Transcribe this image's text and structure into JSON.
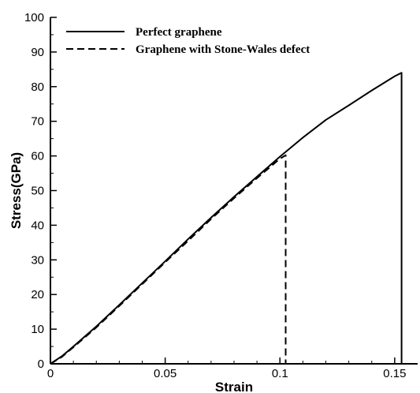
{
  "chart_data": {
    "type": "line",
    "xlabel": "Strain",
    "ylabel": "Stress(GPa)",
    "xlim": [
      0,
      0.16
    ],
    "ylim": [
      0,
      100
    ],
    "x_ticks": [
      0,
      0.05,
      0.1,
      0.15
    ],
    "x_tick_labels": [
      "0",
      "0.05",
      "0.1",
      "0.15"
    ],
    "y_ticks": [
      0,
      10,
      20,
      30,
      40,
      50,
      60,
      70,
      80,
      90,
      100
    ],
    "y_tick_labels": [
      "0",
      "10",
      "20",
      "30",
      "40",
      "50",
      "60",
      "70",
      "80",
      "90",
      "100"
    ],
    "grid": false,
    "legend_position": "top-left",
    "series": [
      {
        "name": "Perfect graphene",
        "style": "solid",
        "color": "#000000",
        "points": [
          [
            0,
            0
          ],
          [
            0.005,
            2.2
          ],
          [
            0.01,
            5.0
          ],
          [
            0.02,
            10.8
          ],
          [
            0.03,
            17.0
          ],
          [
            0.04,
            23.3
          ],
          [
            0.05,
            29.6
          ],
          [
            0.06,
            36.0
          ],
          [
            0.07,
            42.2
          ],
          [
            0.08,
            48.2
          ],
          [
            0.09,
            54.0
          ],
          [
            0.1,
            59.8
          ],
          [
            0.11,
            65.3
          ],
          [
            0.12,
            70.4
          ],
          [
            0.13,
            74.6
          ],
          [
            0.14,
            78.9
          ],
          [
            0.15,
            83.0
          ],
          [
            0.153,
            84.0
          ],
          [
            0.153,
            0
          ]
        ]
      },
      {
        "name": "Graphene with Stone-Wales defect",
        "style": "dashed",
        "color": "#000000",
        "points": [
          [
            0,
            0
          ],
          [
            0.005,
            2.0
          ],
          [
            0.01,
            4.8
          ],
          [
            0.02,
            10.5
          ],
          [
            0.03,
            16.7
          ],
          [
            0.04,
            23.0
          ],
          [
            0.05,
            29.3
          ],
          [
            0.06,
            35.5
          ],
          [
            0.07,
            41.8
          ],
          [
            0.08,
            47.8
          ],
          [
            0.09,
            53.6
          ],
          [
            0.1,
            59.2
          ],
          [
            0.1025,
            60.2
          ],
          [
            0.1025,
            0
          ]
        ]
      }
    ]
  }
}
